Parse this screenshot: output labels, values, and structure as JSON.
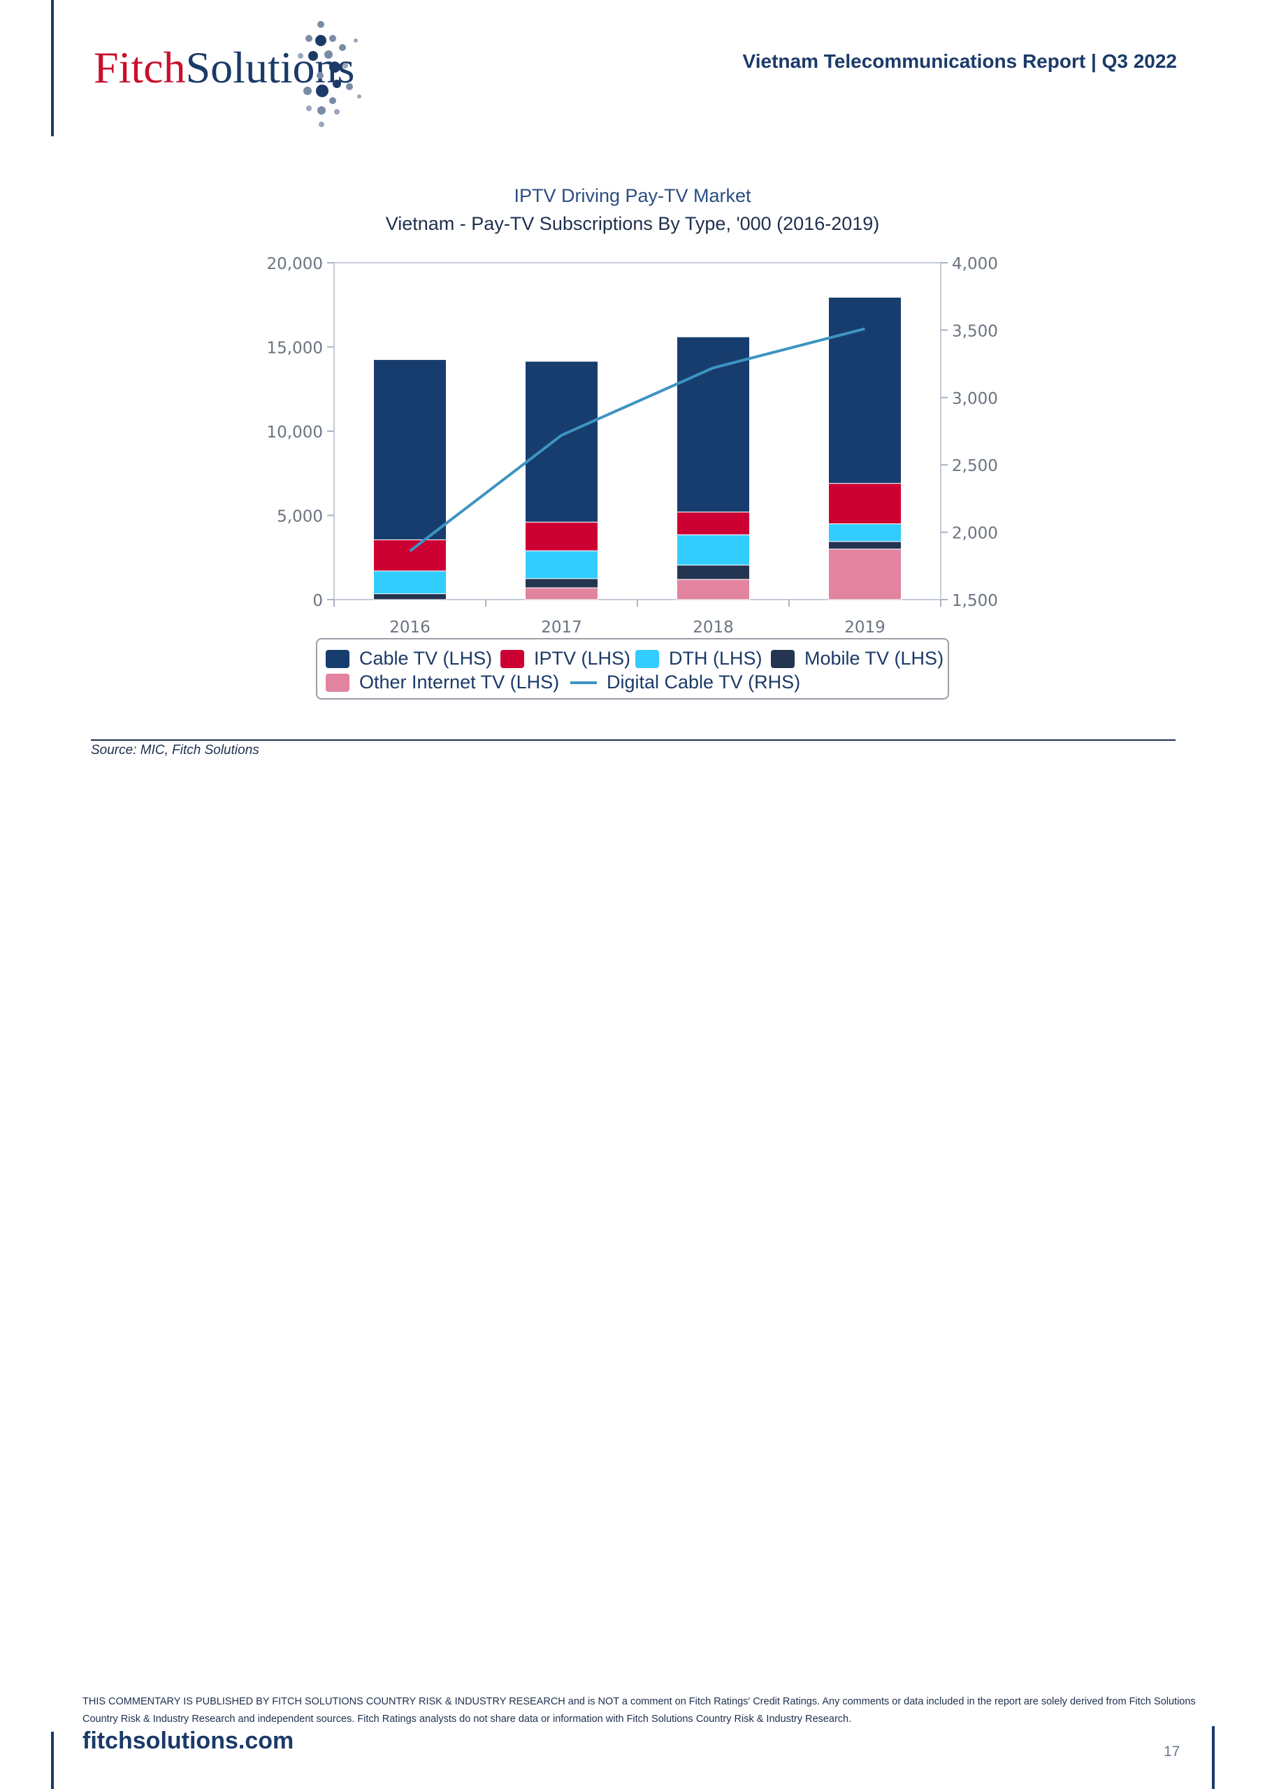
{
  "header": {
    "logo_fitch": "Fitch",
    "logo_solutions": "Solutions",
    "report_title": "Vietnam Telecommunications Report | Q3 2022"
  },
  "colors": {
    "brand_navy": "#1b3a68",
    "brand_red": "#c8102e"
  },
  "chart_data": {
    "type": "bar",
    "stacked": true,
    "title": "IPTV Driving Pay-TV Market",
    "subtitle": "Vietnam - Pay-TV Subscriptions By Type, '000 (2016-2019)",
    "categories": [
      "2016",
      "2017",
      "2018",
      "2019"
    ],
    "ylim_left": [
      0,
      20000
    ],
    "yticks_left": [
      0,
      5000,
      10000,
      15000,
      20000
    ],
    "ytick_labels_left": [
      "0",
      "5,000",
      "10,000",
      "15,000",
      "20,000"
    ],
    "ylim_right": [
      1500,
      4000
    ],
    "yticks_right": [
      1500,
      2000,
      2500,
      3000,
      3500,
      4000
    ],
    "ytick_labels_right": [
      "1,500",
      "2,000",
      "2,500",
      "3,000",
      "3,500",
      "4,000"
    ],
    "series": [
      {
        "name": "Other Internet TV (LHS)",
        "axis": "left",
        "kind": "bar",
        "color": "#e283a0",
        "values": [
          0,
          700,
          1200,
          3000
        ]
      },
      {
        "name": "Mobile TV (LHS)",
        "axis": "left",
        "kind": "bar",
        "color": "#243552",
        "values": [
          350,
          550,
          850,
          450
        ]
      },
      {
        "name": "DTH (LHS)",
        "axis": "left",
        "kind": "bar",
        "color": "#33ccff",
        "values": [
          1350,
          1650,
          1800,
          1050
        ]
      },
      {
        "name": "IPTV (LHS)",
        "axis": "left",
        "kind": "bar",
        "color": "#cc0033",
        "values": [
          1850,
          1700,
          1350,
          2400
        ]
      },
      {
        "name": "Cable TV (LHS)",
        "axis": "left",
        "kind": "bar",
        "color": "#173d6e",
        "values": [
          10700,
          9550,
          10400,
          11050
        ]
      },
      {
        "name": "Digital Cable TV (RHS)",
        "axis": "right",
        "kind": "line",
        "color": "#3d94c2",
        "values": [
          1860,
          2720,
          3220,
          3510
        ]
      }
    ],
    "legend": [
      {
        "name": "Cable TV (LHS)",
        "kind": "bar",
        "color": "#173d6e"
      },
      {
        "name": "IPTV (LHS)",
        "kind": "bar",
        "color": "#cc0033"
      },
      {
        "name": "DTH (LHS)",
        "kind": "bar",
        "color": "#33ccff"
      },
      {
        "name": "Mobile TV (LHS)",
        "kind": "bar",
        "color": "#243552"
      },
      {
        "name": "Other Internet TV (LHS)",
        "kind": "bar",
        "color": "#e283a0"
      },
      {
        "name": "Digital Cable TV (RHS)",
        "kind": "line",
        "color": "#3d94c2"
      }
    ],
    "legend_position": "bottom"
  },
  "source": "Source: MIC, Fitch Solutions",
  "footer": {
    "disclaimer": "THIS COMMENTARY IS PUBLISHED BY FITCH SOLUTIONS COUNTRY RISK & INDUSTRY RESEARCH and is NOT a comment on Fitch Ratings' Credit Ratings. Any comments or data included in the report are solely derived from Fitch Solutions Country Risk & Industry Research and independent sources. Fitch Ratings analysts do not share data or information with Fitch Solutions Country Risk & Industry Research.",
    "site": "fitchsolutions.com",
    "page_number": "17"
  }
}
